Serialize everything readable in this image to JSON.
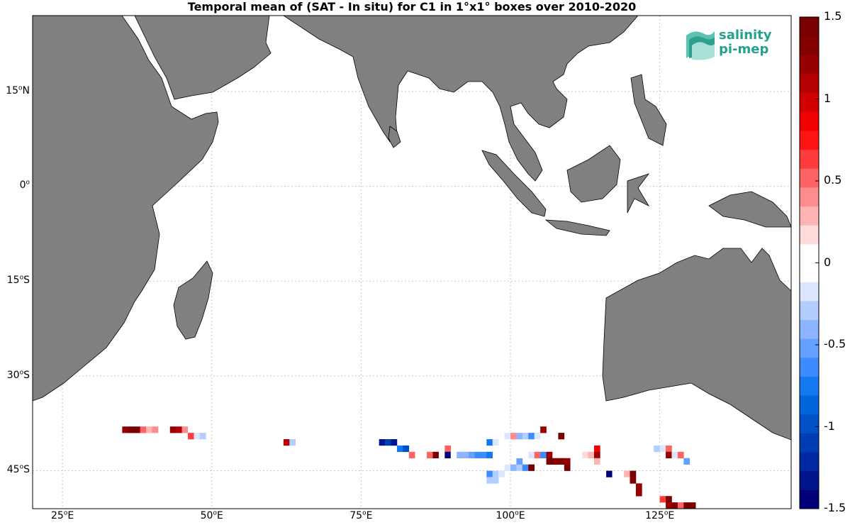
{
  "title": "Temporal mean of (SAT - In situ) for C1 in 1°x1° boxes over 2010-2020",
  "logo": {
    "line1": "salinity",
    "line2": "pi-mep"
  },
  "lat_ticks": [
    {
      "value": 15,
      "num": "15",
      "sup": "o",
      "suffix": "N"
    },
    {
      "value": 0,
      "num": "0",
      "sup": "o",
      "suffix": ""
    },
    {
      "value": -15,
      "num": "15",
      "sup": "o",
      "suffix": "S"
    },
    {
      "value": -30,
      "num": "30",
      "sup": "o",
      "suffix": "S"
    },
    {
      "value": -45,
      "num": "45",
      "sup": "o",
      "suffix": "S"
    }
  ],
  "lon_ticks": [
    {
      "value": 25,
      "num": "25",
      "sup": "o",
      "suffix": "E"
    },
    {
      "value": 50,
      "num": "50",
      "sup": "o",
      "suffix": "E"
    },
    {
      "value": 75,
      "num": "75",
      "sup": "o",
      "suffix": "E"
    },
    {
      "value": 100,
      "num": "100",
      "sup": "o",
      "suffix": "E"
    },
    {
      "value": 125,
      "num": "125",
      "sup": "o",
      "suffix": "E"
    }
  ],
  "colorbar": {
    "min": -1.5,
    "max": 1.5,
    "tick_labels": [
      "1.5",
      "1",
      "0.5",
      "0",
      "-0.5",
      "-1",
      "-1.5"
    ],
    "tick_values": [
      1.5,
      1,
      0.5,
      0,
      -0.5,
      -1,
      -1.5
    ],
    "colors_bottom_to_top": [
      "#000078",
      "#00148c",
      "#0028a0",
      "#003cb4",
      "#0050c8",
      "#0064dc",
      "#1478f0",
      "#3c8cff",
      "#64a0ff",
      "#8cb4ff",
      "#b4cdff",
      "#dce6ff",
      "#ffffff",
      "#ffffff",
      "#ffdcdc",
      "#ffb4b4",
      "#ff8c8c",
      "#ff6464",
      "#ff3c3c",
      "#ff1414",
      "#f00000",
      "#d20000",
      "#b40000",
      "#960000",
      "#820000",
      "#780000"
    ]
  },
  "colors": {
    "land": "#808080",
    "coast": "#000000",
    "grid": "#c8c8c8",
    "ocean": "#ffffff"
  },
  "chart_data": {
    "type": "heatmap",
    "title": "Temporal mean of (SAT - In situ) for C1 in 1°x1° boxes over 2010-2020",
    "xlim": [
      20,
      147
    ],
    "ylim": [
      -51,
      27
    ],
    "value_range": [
      -1.5,
      1.5
    ],
    "cells": [
      {
        "lon": 35.5,
        "lat": -38.5,
        "v": 1.2
      },
      {
        "lon": 36.5,
        "lat": -38.5,
        "v": 1.4
      },
      {
        "lon": 37.5,
        "lat": -38.5,
        "v": 1.4
      },
      {
        "lon": 38.5,
        "lat": -38.5,
        "v": 0.5
      },
      {
        "lon": 39.5,
        "lat": -38.5,
        "v": 0.3
      },
      {
        "lon": 40.5,
        "lat": -38.5,
        "v": 0.4
      },
      {
        "lon": 43.5,
        "lat": -38.5,
        "v": 1.2
      },
      {
        "lon": 44.5,
        "lat": -38.5,
        "v": 1.1
      },
      {
        "lon": 45.5,
        "lat": -38.5,
        "v": 0.4
      },
      {
        "lon": 46.5,
        "lat": -38.5,
        "v": 0.1
      },
      {
        "lon": 46.5,
        "lat": -39.5,
        "v": 0.6
      },
      {
        "lon": 47.5,
        "lat": -39.5,
        "v": -0.2
      },
      {
        "lon": 48.5,
        "lat": -39.5,
        "v": -0.3
      },
      {
        "lon": 62.5,
        "lat": -40.5,
        "v": 1.1
      },
      {
        "lon": 63.5,
        "lat": -40.5,
        "v": -0.3
      },
      {
        "lon": 78.5,
        "lat": -40.5,
        "v": -1.3
      },
      {
        "lon": 79.5,
        "lat": -40.5,
        "v": -1.1
      },
      {
        "lon": 80.5,
        "lat": -40.5,
        "v": -1.3
      },
      {
        "lon": 81.5,
        "lat": -41.5,
        "v": -0.8
      },
      {
        "lon": 82.5,
        "lat": -41.5,
        "v": -1.0
      },
      {
        "lon": 83.5,
        "lat": -42.5,
        "v": 0.5
      },
      {
        "lon": 86.5,
        "lat": -42.5,
        "v": 0.5
      },
      {
        "lon": 87.5,
        "lat": -42.5,
        "v": 1.4
      },
      {
        "lon": 88.5,
        "lat": -42.5,
        "v": 0.1
      },
      {
        "lon": 89.5,
        "lat": -41.5,
        "v": 0.5
      },
      {
        "lon": 89.5,
        "lat": -42.5,
        "v": -1.5
      },
      {
        "lon": 90.5,
        "lat": -42.5,
        "v": -0.1
      },
      {
        "lon": 91.5,
        "lat": -42.5,
        "v": -0.4
      },
      {
        "lon": 92.5,
        "lat": -42.5,
        "v": -0.4
      },
      {
        "lon": 93.5,
        "lat": -42.5,
        "v": -0.5
      },
      {
        "lon": 94.5,
        "lat": -42.5,
        "v": -0.6
      },
      {
        "lon": 95.5,
        "lat": -42.5,
        "v": -0.6
      },
      {
        "lon": 96.5,
        "lat": -42.5,
        "v": -0.8
      },
      {
        "lon": 96.5,
        "lat": -40.5,
        "v": -0.7
      },
      {
        "lon": 97.5,
        "lat": -40.5,
        "v": -0.2
      },
      {
        "lon": 99.5,
        "lat": -39.5,
        "v": -0.2
      },
      {
        "lon": 100.5,
        "lat": -39.5,
        "v": 0.4
      },
      {
        "lon": 101.5,
        "lat": -39.5,
        "v": -0.4
      },
      {
        "lon": 102.5,
        "lat": -39.5,
        "v": -0.3
      },
      {
        "lon": 103.5,
        "lat": -39.5,
        "v": -0.6
      },
      {
        "lon": 104.5,
        "lat": -39.5,
        "v": -0.2
      },
      {
        "lon": 105.5,
        "lat": -38.5,
        "v": 1.2
      },
      {
        "lon": 108.5,
        "lat": -39.5,
        "v": 1.4
      },
      {
        "lon": 96.5,
        "lat": -45.5,
        "v": -0.6
      },
      {
        "lon": 97.5,
        "lat": -45.5,
        "v": -0.3
      },
      {
        "lon": 98.5,
        "lat": -45.5,
        "v": -0.2
      },
      {
        "lon": 96.5,
        "lat": -46.5,
        "v": -0.3
      },
      {
        "lon": 97.5,
        "lat": -46.5,
        "v": -0.3
      },
      {
        "lon": 99.5,
        "lat": -44.5,
        "v": -0.2
      },
      {
        "lon": 100.5,
        "lat": -44.5,
        "v": -0.4
      },
      {
        "lon": 101.5,
        "lat": -44.5,
        "v": -0.3
      },
      {
        "lon": 102.5,
        "lat": -44.5,
        "v": -0.6
      },
      {
        "lon": 103.5,
        "lat": -44.5,
        "v": 1.4
      },
      {
        "lon": 101.5,
        "lat": -43.5,
        "v": -0.5
      },
      {
        "lon": 101.5,
        "lat": -42.5,
        "v": -0.1
      },
      {
        "lon": 102.5,
        "lat": -42.5,
        "v": -0.1
      },
      {
        "lon": 103.5,
        "lat": -42.5,
        "v": -0.2
      },
      {
        "lon": 104.5,
        "lat": -42.5,
        "v": 0.5
      },
      {
        "lon": 105.5,
        "lat": -42.5,
        "v": -0.6
      },
      {
        "lon": 106.5,
        "lat": -42.5,
        "v": 1.2
      },
      {
        "lon": 106.5,
        "lat": -43.5,
        "v": 1.4
      },
      {
        "lon": 107.5,
        "lat": -43.5,
        "v": 1.3
      },
      {
        "lon": 108.5,
        "lat": -43.5,
        "v": 1.3
      },
      {
        "lon": 109.5,
        "lat": -43.5,
        "v": 1.2
      },
      {
        "lon": 109.5,
        "lat": -44.5,
        "v": 1.4
      },
      {
        "lon": 111.5,
        "lat": -43.5,
        "v": -0.1
      },
      {
        "lon": 112.5,
        "lat": -42.5,
        "v": 0.2
      },
      {
        "lon": 113.5,
        "lat": -42.5,
        "v": 0.3
      },
      {
        "lon": 114.5,
        "lat": -42.5,
        "v": 1.2
      },
      {
        "lon": 114.5,
        "lat": -41.5,
        "v": 0.9
      },
      {
        "lon": 114.5,
        "lat": -43.5,
        "v": 0.3
      },
      {
        "lon": 116.5,
        "lat": -45.5,
        "v": -1.4
      },
      {
        "lon": 115.5,
        "lat": -45.5,
        "v": 0.1
      },
      {
        "lon": 119.5,
        "lat": -45.5,
        "v": 0.3
      },
      {
        "lon": 120.5,
        "lat": -45.5,
        "v": 1.4
      },
      {
        "lon": 120.5,
        "lat": -46.5,
        "v": 1.3
      },
      {
        "lon": 121.5,
        "lat": -47.5,
        "v": 1.2
      },
      {
        "lon": 121.5,
        "lat": -48.5,
        "v": 1.2
      },
      {
        "lon": 124.5,
        "lat": -41.5,
        "v": -0.3
      },
      {
        "lon": 125.5,
        "lat": -41.5,
        "v": -0.2
      },
      {
        "lon": 126.5,
        "lat": -41.5,
        "v": 0.5
      },
      {
        "lon": 126.5,
        "lat": -42.5,
        "v": 1.2
      },
      {
        "lon": 127.5,
        "lat": -42.5,
        "v": -0.2
      },
      {
        "lon": 128.5,
        "lat": -42.5,
        "v": 0.5
      },
      {
        "lon": 129.5,
        "lat": -43.5,
        "v": -0.5
      },
      {
        "lon": 125.5,
        "lat": -49.5,
        "v": 0.6
      },
      {
        "lon": 126.5,
        "lat": -49.5,
        "v": 1.3
      },
      {
        "lon": 126.5,
        "lat": -50.5,
        "v": 1.2
      },
      {
        "lon": 127.5,
        "lat": -50.5,
        "v": 1.3
      },
      {
        "lon": 128.5,
        "lat": -50.5,
        "v": 0.5
      },
      {
        "lon": 129.5,
        "lat": -50.5,
        "v": 1.4
      },
      {
        "lon": 130.5,
        "lat": -50.5,
        "v": 1.4
      }
    ]
  }
}
